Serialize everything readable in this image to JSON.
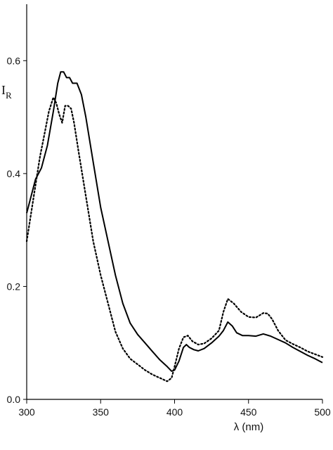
{
  "chart_data": {
    "type": "line",
    "xlabel": "λ (nm)",
    "ylabel": {
      "main": "I",
      "sub": "R"
    },
    "xlim": [
      300,
      500
    ],
    "ylim": [
      0,
      0.7
    ],
    "xticks": [
      "300",
      "350",
      "400",
      "450",
      "500"
    ],
    "xtick_values": [
      300,
      350,
      400,
      450,
      500
    ],
    "yticks": [
      "0.0",
      "0.2",
      "0.4",
      "0.6"
    ],
    "ytick_values": [
      0,
      0.2,
      0.4,
      0.6
    ],
    "grid": false,
    "series": [
      {
        "style": "solid",
        "color": "#000000",
        "x": [
          300,
          303,
          306,
          310,
          314,
          318,
          321,
          323,
          325,
          327,
          329,
          331,
          334,
          337,
          340,
          345,
          350,
          355,
          360,
          365,
          370,
          375,
          380,
          385,
          390,
          395,
          398,
          400,
          403,
          406,
          408,
          410,
          413,
          416,
          420,
          425,
          430,
          433,
          436,
          439,
          442,
          446,
          450,
          455,
          460,
          465,
          470,
          475,
          480,
          485,
          490,
          495,
          500
        ],
        "y": [
          0.33,
          0.36,
          0.39,
          0.41,
          0.45,
          0.51,
          0.56,
          0.58,
          0.58,
          0.57,
          0.57,
          0.56,
          0.56,
          0.54,
          0.5,
          0.42,
          0.34,
          0.28,
          0.22,
          0.17,
          0.135,
          0.115,
          0.1,
          0.085,
          0.07,
          0.058,
          0.05,
          0.052,
          0.068,
          0.092,
          0.097,
          0.092,
          0.088,
          0.086,
          0.09,
          0.1,
          0.112,
          0.122,
          0.137,
          0.13,
          0.118,
          0.113,
          0.113,
          0.112,
          0.116,
          0.112,
          0.106,
          0.1,
          0.092,
          0.085,
          0.078,
          0.072,
          0.065
        ]
      },
      {
        "style": "dotted",
        "color": "#000000",
        "x": [
          300,
          303,
          306,
          309,
          312,
          315,
          318,
          320,
          322,
          324,
          326,
          328,
          330,
          332,
          335,
          340,
          345,
          350,
          355,
          360,
          365,
          370,
          375,
          380,
          385,
          390,
          395,
          398,
          400,
          403,
          406,
          409,
          412,
          416,
          420,
          425,
          430,
          433,
          436,
          440,
          445,
          450,
          455,
          460,
          463,
          466,
          470,
          475,
          480,
          485,
          490,
          495,
          500
        ],
        "y": [
          0.28,
          0.33,
          0.38,
          0.43,
          0.47,
          0.51,
          0.535,
          0.525,
          0.505,
          0.49,
          0.52,
          0.52,
          0.515,
          0.49,
          0.44,
          0.36,
          0.28,
          0.22,
          0.17,
          0.12,
          0.09,
          0.072,
          0.062,
          0.052,
          0.044,
          0.038,
          0.032,
          0.038,
          0.058,
          0.09,
          0.11,
          0.113,
          0.103,
          0.097,
          0.099,
          0.108,
          0.122,
          0.155,
          0.178,
          0.17,
          0.155,
          0.146,
          0.145,
          0.153,
          0.152,
          0.142,
          0.122,
          0.105,
          0.098,
          0.092,
          0.085,
          0.08,
          0.075
        ]
      }
    ]
  }
}
